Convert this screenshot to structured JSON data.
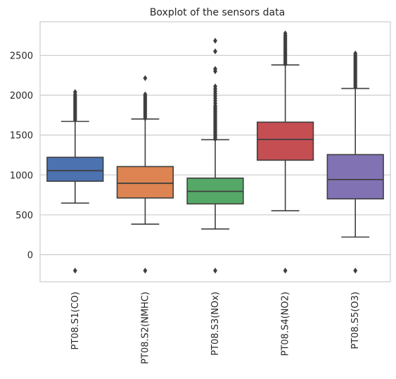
{
  "chart_data": {
    "type": "box",
    "title": "Boxplot of the sensors data",
    "xlabel": "",
    "ylabel": "",
    "ylim": [
      -340,
      2920
    ],
    "yticks": [
      0,
      500,
      1000,
      1500,
      2000,
      2500
    ],
    "ytick_labels": [
      "0",
      "500",
      "1000",
      "1500",
      "2000",
      "2500"
    ],
    "grid": "horizontal",
    "categories": [
      "PT08.S1(CO)",
      "PT08.S2(NMHC)",
      "PT08.S3(NOx)",
      "PT08.S4(NO2)",
      "PT08.S5(O3)"
    ],
    "boxes": [
      {
        "name": "PT08.S1(CO)",
        "color": "#4c72b0",
        "whisker_low": 647,
        "q1": 921,
        "median": 1053,
        "q3": 1221,
        "whisker_high": 1671,
        "outliers": [
          -200,
          1690,
          1710,
          1730,
          1750,
          1770,
          1790,
          1810,
          1830,
          1850,
          1870,
          1890,
          1910,
          1930,
          1950,
          1970,
          1990,
          2010,
          2040
        ]
      },
      {
        "name": "PT08.S2(NMHC)",
        "color": "#dd8452",
        "whisker_low": 383,
        "q1": 711,
        "median": 895,
        "q3": 1105,
        "whisker_high": 1701,
        "outliers": [
          -200,
          1710,
          1730,
          1750,
          1770,
          1790,
          1810,
          1830,
          1850,
          1870,
          1890,
          1910,
          1930,
          1950,
          1970,
          1990,
          2010,
          2214
        ]
      },
      {
        "name": "PT08.S3(NOx)",
        "color": "#55a868",
        "whisker_low": 322,
        "q1": 637,
        "median": 794,
        "q3": 960,
        "whisker_high": 1442,
        "outliers": [
          -200,
          1450,
          1470,
          1490,
          1510,
          1530,
          1550,
          1570,
          1590,
          1610,
          1630,
          1650,
          1670,
          1690,
          1710,
          1730,
          1750,
          1770,
          1790,
          1810,
          1830,
          1850,
          1870,
          1900,
          1930,
          1960,
          1990,
          2020,
          2050,
          2080,
          2110,
          2300,
          2330,
          2550,
          2683
        ]
      },
      {
        "name": "PT08.S4(NO2)",
        "color": "#c44e52",
        "whisker_low": 551,
        "q1": 1185,
        "median": 1446,
        "q3": 1662,
        "whisker_high": 2379,
        "outliers": [
          -200,
          2390,
          2410,
          2430,
          2450,
          2470,
          2490,
          2510,
          2530,
          2550,
          2570,
          2590,
          2610,
          2630,
          2650,
          2670,
          2690,
          2710,
          2730,
          2750,
          2775
        ]
      },
      {
        "name": "PT08.S5(O3)",
        "color": "#8172b3",
        "whisker_low": 221,
        "q1": 700,
        "median": 942,
        "q3": 1255,
        "whisker_high": 2085,
        "outliers": [
          -200,
          2100,
          2120,
          2140,
          2160,
          2180,
          2200,
          2220,
          2240,
          2260,
          2280,
          2300,
          2320,
          2340,
          2360,
          2380,
          2400,
          2420,
          2440,
          2460,
          2480,
          2500,
          2523
        ]
      }
    ]
  }
}
